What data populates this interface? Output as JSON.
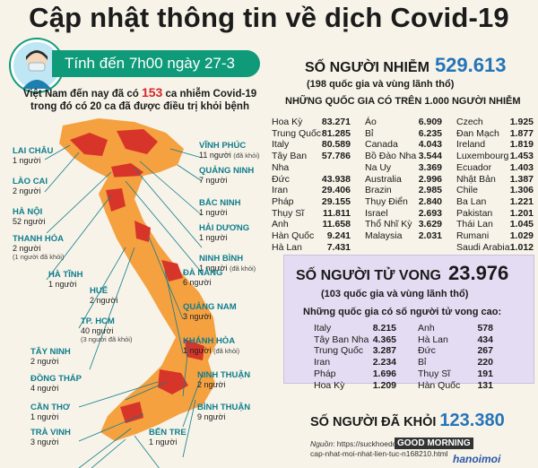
{
  "title": "Cập nhật thông tin về dịch Covid-19",
  "date_banner": "Tính đến 7h00 ngày 27-3",
  "summary": {
    "line1_pre": "Việt Nam đến nay đã có ",
    "count": "153",
    "line1_post": " ca nhiễm Covid-19",
    "line2": "trong đó có 20 ca đã được điều trị khỏi bệnh"
  },
  "colors": {
    "accent": "#0f9b7a",
    "infected": "#d8262a",
    "blue_number": "#2574b8",
    "death_box": "#e4dcf2"
  },
  "provinces": [
    {
      "name": "VĨNH PHÚC",
      "count": "11 người",
      "note": "(đã khỏi)"
    },
    {
      "name": "QUẢNG NINH",
      "count": "7 người",
      "note": ""
    },
    {
      "name": "LAI CHÂU",
      "count": "1 người",
      "note": ""
    },
    {
      "name": "BẮC NINH",
      "count": "1 người",
      "note": ""
    },
    {
      "name": "LÀO CAI",
      "count": "2 người",
      "note": ""
    },
    {
      "name": "HẢI DƯƠNG",
      "count": "1 người",
      "note": ""
    },
    {
      "name": "HÀ NỘI",
      "count": "52 người",
      "note": ""
    },
    {
      "name": "NINH BÌNH",
      "count": "1 người",
      "note": "(đã khỏi)"
    },
    {
      "name": "THANH HÓA",
      "count": "2 người",
      "note": "(1 người đã khỏi)"
    },
    {
      "name": "HÀ TĨNH",
      "count": "1 người",
      "note": ""
    },
    {
      "name": "ĐÀ NẴNG",
      "count": "6 người",
      "note": ""
    },
    {
      "name": "HUẾ",
      "count": "2 người",
      "note": ""
    },
    {
      "name": "QUẢNG NAM",
      "count": "3 người",
      "note": ""
    },
    {
      "name": "TP. HCM",
      "count": "40 người",
      "note": "(3 người đã khỏi)"
    },
    {
      "name": "KHÁNH HÒA",
      "count": "1 người",
      "note": "(đã khỏi)"
    },
    {
      "name": "TÂY NINH",
      "count": "2 người",
      "note": ""
    },
    {
      "name": "NINH THUẬN",
      "count": "2 người",
      "note": ""
    },
    {
      "name": "ĐỒNG THÁP",
      "count": "4 người",
      "note": ""
    },
    {
      "name": "BÌNH THUẬN",
      "count": "9 người",
      "note": ""
    },
    {
      "name": "CẦN THƠ",
      "count": "1 người",
      "note": ""
    },
    {
      "name": "TRÀ VINH",
      "count": "3 người",
      "note": ""
    },
    {
      "name": "BẾN TRE",
      "count": "1 người",
      "note": ""
    }
  ],
  "infected": {
    "label": "SỐ NGƯỜI NHIỄM",
    "total": "529.613",
    "sub": "(198 quốc gia và vùng lãnh thổ)",
    "sub2": "NHỮNG QUỐC GIA CÓ TRÊN 1.000 NGƯỜI NHIỄM",
    "columns": [
      [
        [
          "Hoa Kỳ",
          "83.271"
        ],
        [
          "Trung Quốc",
          "81.285"
        ],
        [
          "Italy",
          "80.589"
        ],
        [
          "Tây Ban Nha",
          "57.786"
        ],
        [
          "Đức",
          "43.938"
        ],
        [
          "Iran",
          "29.406"
        ],
        [
          "Pháp",
          "29.155"
        ],
        [
          "Thụy Sĩ",
          "11.811"
        ],
        [
          "Anh",
          "11.658"
        ],
        [
          "Hàn Quốc",
          "9.241"
        ],
        [
          "Hà Lan",
          "7.431"
        ]
      ],
      [
        [
          "Áo",
          "6.909"
        ],
        [
          "Bỉ",
          "6.235"
        ],
        [
          "Canada",
          "4.043"
        ],
        [
          "Bồ Đào Nha",
          "3.544"
        ],
        [
          "Na Uy",
          "3.369"
        ],
        [
          "Australia",
          "2.996"
        ],
        [
          "Brazin",
          "2.985"
        ],
        [
          "Thụy Điển",
          "2.840"
        ],
        [
          "Israel",
          "2.693"
        ],
        [
          "Thổ Nhĩ Kỳ",
          "3.629"
        ],
        [
          "Malaysia",
          "2.031"
        ]
      ],
      [
        [
          "Czech",
          "1.925"
        ],
        [
          "Đan Mạch",
          "1.877"
        ],
        [
          "Ireland",
          "1.819"
        ],
        [
          "Luxembourg",
          "1.453"
        ],
        [
          "Ecuador",
          "1.403"
        ],
        [
          "Nhật Bản",
          "1.387"
        ],
        [
          "Chile",
          "1.306"
        ],
        [
          "Ba Lan",
          "1.221"
        ],
        [
          "Pakistan",
          "1.201"
        ],
        [
          "Thái Lan",
          "1.045"
        ],
        [
          "Rumani",
          "1.029"
        ],
        [
          "Saudi Arabia",
          "1.012"
        ]
      ]
    ]
  },
  "deaths": {
    "label": "SỐ NGƯỜI TỬ VONG",
    "total": "23.976",
    "sub": "(103 quốc gia và vùng lãnh thổ)",
    "sub2": "Những quốc gia có số người tử vong cao:",
    "columns": [
      [
        [
          "Italy",
          "8.215"
        ],
        [
          "Tây Ban Nha",
          "4.365"
        ],
        [
          "Trung Quốc",
          "3.287"
        ],
        [
          "Iran",
          "2.234"
        ],
        [
          "Pháp",
          "1.696"
        ],
        [
          "Hoa Kỳ",
          "1.209"
        ]
      ],
      [
        [
          "Anh",
          "578"
        ],
        [
          "Hà Lan",
          "434"
        ],
        [
          "Đức",
          "267"
        ],
        [
          "Bỉ",
          "220"
        ],
        [
          "Thụy Sĩ",
          "191"
        ],
        [
          "Hàn Quốc",
          "131"
        ]
      ]
    ]
  },
  "recovered": {
    "label": "SỐ NGƯỜI ĐÃ KHỎI",
    "total": "123.380"
  },
  "source": {
    "label": "Nguồn",
    "text": "https://suckhoedoisong.vn/",
    "text2": "cap-nhat-moi-nhat-lien-tuc-n168210.html"
  },
  "watermark": {
    "line1": "GOOD MORNING",
    "line2": "hanoimoi"
  }
}
